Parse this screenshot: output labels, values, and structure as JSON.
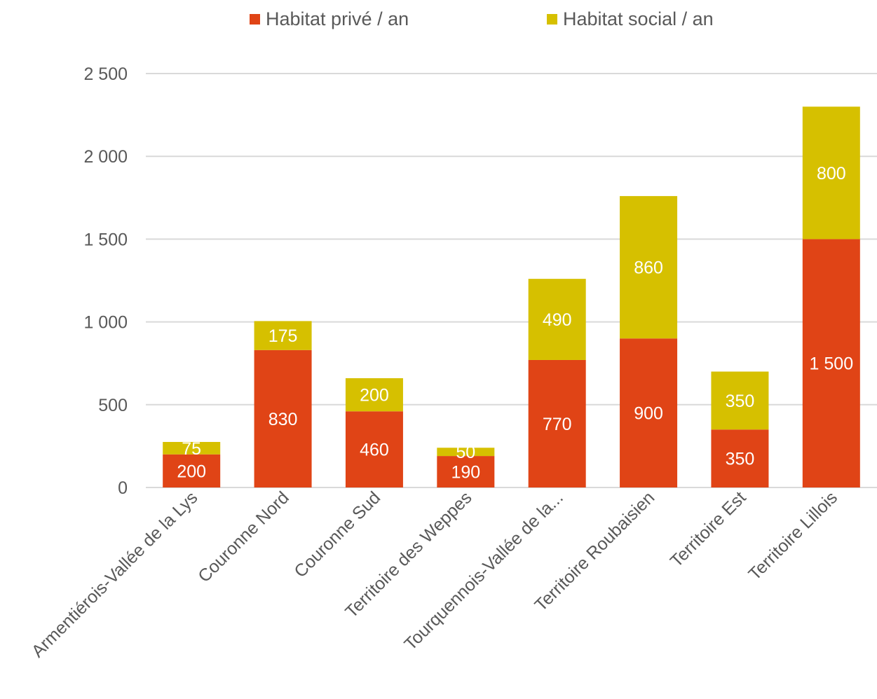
{
  "chart_data": {
    "type": "bar",
    "stacked": true,
    "title": "",
    "xlabel": "",
    "ylabel": "",
    "ylim": [
      0,
      2500
    ],
    "yticks": [
      0,
      500,
      1000,
      1500,
      2000,
      2500
    ],
    "ytick_labels": [
      "0",
      "500",
      "1 000",
      "1 500",
      "2 000",
      "2 500"
    ],
    "grid": true,
    "legend_position": "top",
    "categories": [
      "Armentiérois-Vallée de la Lys",
      "Couronne Nord",
      "Couronne Sud",
      "Territoire des Weppes",
      "Tourquennois-Vallée de la...",
      "Territoire Roubaisien",
      "Territoire Est",
      "Territoire Lillois"
    ],
    "series": [
      {
        "name": "Habitat privé / an",
        "color": "#E04416",
        "values": [
          200,
          830,
          460,
          190,
          770,
          900,
          350,
          1500
        ],
        "labels": [
          "200",
          "830",
          "460",
          "190",
          "770",
          "900",
          "350",
          "1 500"
        ]
      },
      {
        "name": "Habitat social / an",
        "color": "#D6C000",
        "values": [
          75,
          175,
          200,
          50,
          490,
          860,
          350,
          800
        ],
        "labels": [
          "75",
          "175",
          "200",
          "50",
          "490",
          "860",
          "350",
          "800"
        ]
      }
    ]
  }
}
